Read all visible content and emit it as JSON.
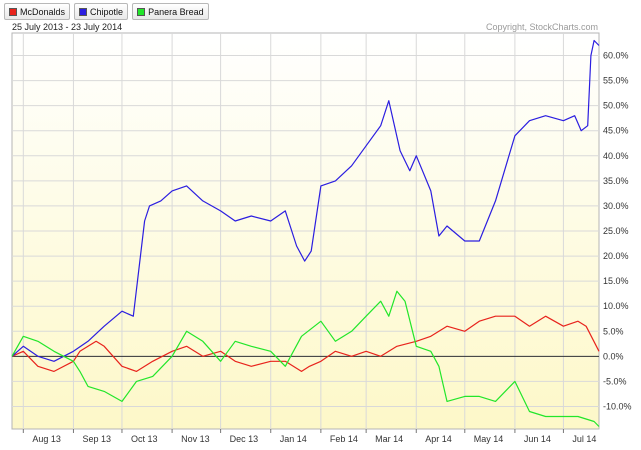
{
  "legend": [
    {
      "label": "McDonalds",
      "color": "#e8231c"
    },
    {
      "label": "Chipotle",
      "color": "#2b1ee0"
    },
    {
      "label": "Panera Bread",
      "color": "#22e62a"
    }
  ],
  "date_range": "25 July 2013 - 23 July 2014",
  "copyright": "Copyright, StockCharts.com",
  "chart_data": {
    "type": "line",
    "title": "",
    "xlabel": "",
    "ylabel": "",
    "ylim": [
      -14.5,
      64.5
    ],
    "y_ticks": [
      60,
      55,
      50,
      45,
      40,
      35,
      30,
      25,
      20,
      15,
      10,
      5,
      0,
      -5,
      -10
    ],
    "y_tick_labels": [
      "60.0%",
      "55.0%",
      "50.0%",
      "45.0%",
      "40.0%",
      "35.0%",
      "30.0%",
      "25.0%",
      "20.0%",
      "15.0%",
      "10.0%",
      "5.0%",
      "0.0%",
      "-5.0%",
      "-10.0%"
    ],
    "x_range": [
      "2013-07-25",
      "2014-07-23"
    ],
    "x_ticks": [
      "2013-08-01",
      "2013-09-01",
      "2013-10-01",
      "2013-11-01",
      "2013-12-01",
      "2014-01-01",
      "2014-02-01",
      "2014-03-01",
      "2014-04-01",
      "2014-05-01",
      "2014-06-01",
      "2014-07-01"
    ],
    "x_tick_labels": [
      "Aug 13",
      "Sep 13",
      "Oct 13",
      "Nov 13",
      "Dec 13",
      "Jan 14",
      "Feb 14",
      "Mar 14",
      "Apr 14",
      "May 14",
      "Jun 14",
      "Jul 14"
    ],
    "grid": true,
    "legend_position": "top-left",
    "series": [
      {
        "name": "McDonalds",
        "color": "#e8231c",
        "x": [
          "2013-07-25",
          "2013-08-01",
          "2013-08-10",
          "2013-08-20",
          "2013-09-01",
          "2013-09-05",
          "2013-09-15",
          "2013-09-20",
          "2013-10-01",
          "2013-10-10",
          "2013-10-20",
          "2013-11-01",
          "2013-11-10",
          "2013-11-20",
          "2013-12-01",
          "2013-12-10",
          "2013-12-20",
          "2014-01-01",
          "2014-01-10",
          "2014-01-20",
          "2014-01-25",
          "2014-02-01",
          "2014-02-10",
          "2014-02-20",
          "2014-03-01",
          "2014-03-10",
          "2014-03-20",
          "2014-04-01",
          "2014-04-10",
          "2014-04-20",
          "2014-05-01",
          "2014-05-10",
          "2014-05-20",
          "2014-06-01",
          "2014-06-10",
          "2014-06-20",
          "2014-07-01",
          "2014-07-10",
          "2014-07-15",
          "2014-07-23"
        ],
        "y": [
          0,
          1,
          -2,
          -3,
          -1,
          1,
          3,
          2,
          -2,
          -3,
          -1,
          1,
          2,
          0,
          1,
          -1,
          -2,
          -1,
          -1,
          -3,
          -2,
          -1,
          1,
          0,
          1,
          0,
          2,
          3,
          4,
          6,
          5,
          7,
          8,
          8,
          6,
          8,
          6,
          7,
          6,
          1
        ]
      },
      {
        "name": "Chipotle",
        "color": "#2b1ee0",
        "x": [
          "2013-07-25",
          "2013-08-01",
          "2013-08-10",
          "2013-08-20",
          "2013-09-01",
          "2013-09-10",
          "2013-09-20",
          "2013-10-01",
          "2013-10-08",
          "2013-10-15",
          "2013-10-18",
          "2013-10-25",
          "2013-11-01",
          "2013-11-10",
          "2013-11-20",
          "2013-12-01",
          "2013-12-10",
          "2013-12-20",
          "2014-01-01",
          "2014-01-10",
          "2014-01-17",
          "2014-01-22",
          "2014-01-26",
          "2014-02-01",
          "2014-02-10",
          "2014-02-20",
          "2014-03-01",
          "2014-03-10",
          "2014-03-15",
          "2014-03-22",
          "2014-03-28",
          "2014-04-01",
          "2014-04-10",
          "2014-04-15",
          "2014-04-20",
          "2014-05-01",
          "2014-05-10",
          "2014-05-20",
          "2014-06-01",
          "2014-06-10",
          "2014-06-20",
          "2014-07-01",
          "2014-07-08",
          "2014-07-12",
          "2014-07-16",
          "2014-07-18",
          "2014-07-20",
          "2014-07-23"
        ],
        "y": [
          0,
          2,
          0,
          -1,
          1,
          3,
          6,
          9,
          8,
          27,
          30,
          31,
          33,
          34,
          31,
          29,
          27,
          28,
          27,
          29,
          22,
          19,
          21,
          34,
          35,
          38,
          42,
          46,
          51,
          41,
          37,
          40,
          33,
          24,
          26,
          23,
          23,
          31,
          44,
          47,
          48,
          47,
          48,
          45,
          46,
          60,
          63,
          62
        ]
      },
      {
        "name": "Panera Bread",
        "color": "#22e62a",
        "x": [
          "2013-07-25",
          "2013-08-01",
          "2013-08-10",
          "2013-08-20",
          "2013-09-01",
          "2013-09-05",
          "2013-09-10",
          "2013-09-20",
          "2013-10-01",
          "2013-10-10",
          "2013-10-20",
          "2013-11-01",
          "2013-11-10",
          "2013-11-20",
          "2013-12-01",
          "2013-12-10",
          "2013-12-20",
          "2014-01-01",
          "2014-01-10",
          "2014-01-20",
          "2014-02-01",
          "2014-02-10",
          "2014-02-20",
          "2014-03-01",
          "2014-03-10",
          "2014-03-15",
          "2014-03-20",
          "2014-03-25",
          "2014-04-01",
          "2014-04-10",
          "2014-04-15",
          "2014-04-20",
          "2014-05-01",
          "2014-05-10",
          "2014-05-20",
          "2014-06-01",
          "2014-06-10",
          "2014-06-20",
          "2014-07-01",
          "2014-07-10",
          "2014-07-20",
          "2014-07-23"
        ],
        "y": [
          0,
          4,
          3,
          1,
          -1,
          -3,
          -6,
          -7,
          -9,
          -5,
          -4,
          0,
          5,
          3,
          -1,
          3,
          2,
          1,
          -2,
          4,
          7,
          3,
          5,
          8,
          11,
          8,
          13,
          11,
          2,
          1,
          -2,
          -9,
          -8,
          -8,
          -9,
          -5,
          -11,
          -12,
          -12,
          -12,
          -13,
          -14
        ]
      }
    ]
  }
}
